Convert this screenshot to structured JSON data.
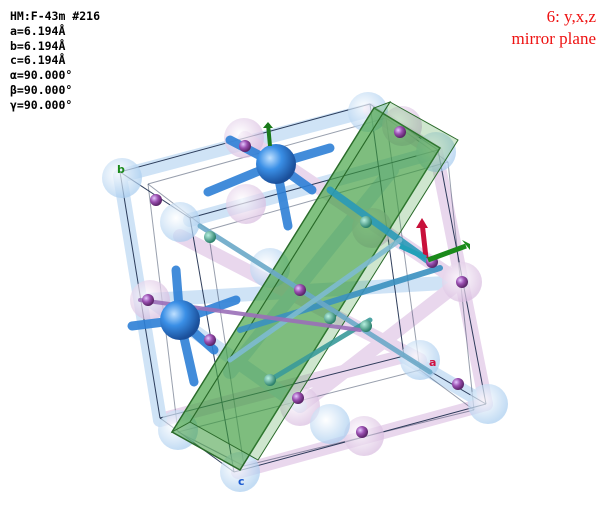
{
  "viewer": {
    "info_lines": [
      "HM:F-43m #216",
      "a=6.194Å",
      "b=6.194Å",
      "c=6.194Å",
      "α=90.000°",
      "β=90.000°",
      "γ=90.000°"
    ],
    "symmetry_operation": "6: y,x,z",
    "symmetry_element": "mirror plane",
    "axis_labels": {
      "a": "a",
      "b": "b",
      "c": "c"
    }
  },
  "colors": {
    "background": "#ffffff",
    "overlay_text": "#ee1111",
    "atom_blue": "#3a8fe6",
    "atom_purple": "#9a4fb0",
    "mirror_plane": "#3c9a3c",
    "axis_a": "#d01040",
    "axis_b": "#1a8a1a",
    "axis_c": "#1a5ad0"
  }
}
